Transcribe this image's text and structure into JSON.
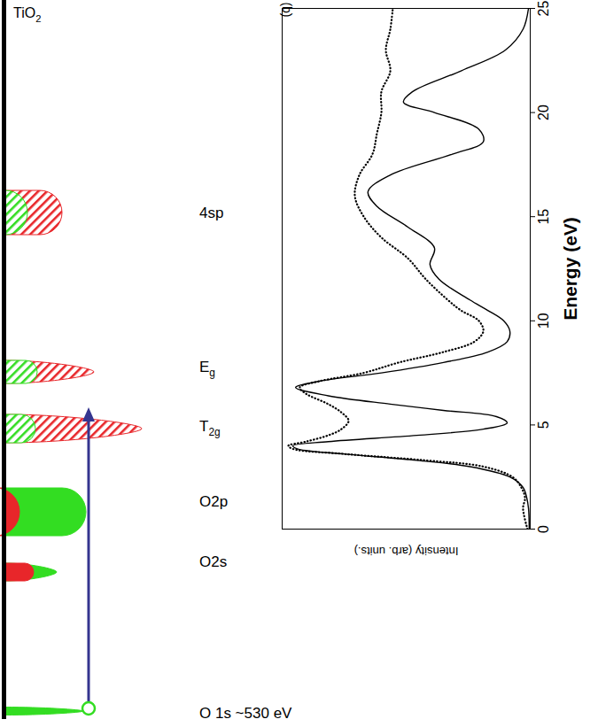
{
  "diagram": {
    "title": {
      "text": "TiO",
      "sub": "2"
    },
    "levels": [
      {
        "text": "4sp"
      },
      {
        "text": "E",
        "sub": "g"
      },
      {
        "text": "T",
        "sub": "2g"
      },
      {
        "text": "O2p"
      },
      {
        "text": "O2s"
      },
      {
        "text": "O 1s ~530 eV"
      }
    ]
  },
  "chart_data": {
    "type": "line",
    "annotations": [
      "(b)"
    ],
    "x_label": "Energy (eV)",
    "y_label": "Intensity (arb. units.)",
    "xlim": [
      0,
      25
    ],
    "xticks": [
      0,
      5,
      10,
      15,
      20,
      25
    ],
    "ylim": [
      0,
      100
    ],
    "yticks": [],
    "tick_labels": "x",
    "grid": false,
    "series": [
      {
        "color": "#000000",
        "line_style": "solid",
        "x": [
          0,
          1,
          1.5,
          2,
          2.5,
          3,
          3.3,
          3.6,
          3.85,
          4.0,
          4.2,
          4.5,
          4.8,
          5.1,
          5.4,
          5.7,
          6.0,
          6.4,
          6.8,
          7.1,
          7.5,
          8.0,
          8.5,
          9.0,
          9.5,
          10,
          10.5,
          11,
          12,
          12.7,
          13.5,
          14.5,
          15.5,
          16.2,
          17,
          18,
          18.6,
          19.2,
          20,
          20.5,
          21,
          22,
          23,
          24,
          25
        ],
        "values": [
          0.4,
          0.7,
          1.4,
          2.9,
          8.2,
          24.3,
          45.7,
          74.3,
          93.9,
          95.7,
          81.4,
          45.7,
          18.9,
          9.3,
          13.6,
          35,
          56.4,
          81.4,
          94.6,
          85,
          60,
          35,
          17.1,
          9.3,
          8.2,
          10.7,
          17.1,
          24.3,
          36.8,
          40.4,
          38.6,
          49.3,
          61.8,
          65.4,
          56.4,
          31.4,
          18.9,
          20.7,
          38.6,
          51.1,
          47.5,
          27.9,
          10,
          2.9,
          0.7
        ]
      },
      {
        "color": "#000000",
        "line_style": "dotted",
        "x": [
          0,
          1,
          1.5,
          2,
          2.5,
          3,
          3.3,
          3.6,
          3.85,
          4.0,
          4.2,
          4.5,
          4.8,
          5.2,
          5.6,
          6.0,
          6.5,
          6.8,
          7.1,
          7.5,
          8,
          8.5,
          9,
          9.5,
          10,
          10.5,
          11,
          12,
          13,
          14,
          15,
          16,
          17,
          18,
          19,
          20,
          21,
          22,
          23,
          24,
          25
        ],
        "values": [
          1.1,
          2.9,
          2.1,
          3.6,
          7.1,
          18.9,
          42.1,
          74.3,
          95.7,
          97.5,
          90.4,
          81.4,
          76.1,
          73.2,
          76.1,
          81.4,
          90.4,
          92.9,
          85,
          67.1,
          52.9,
          35,
          22.5,
          18.9,
          20.7,
          27.9,
          33.2,
          42.1,
          49.3,
          60,
          67.1,
          70.7,
          68.9,
          63.6,
          61.8,
          60,
          60,
          56.4,
          58.2,
          56.4,
          55.4
        ]
      }
    ]
  }
}
